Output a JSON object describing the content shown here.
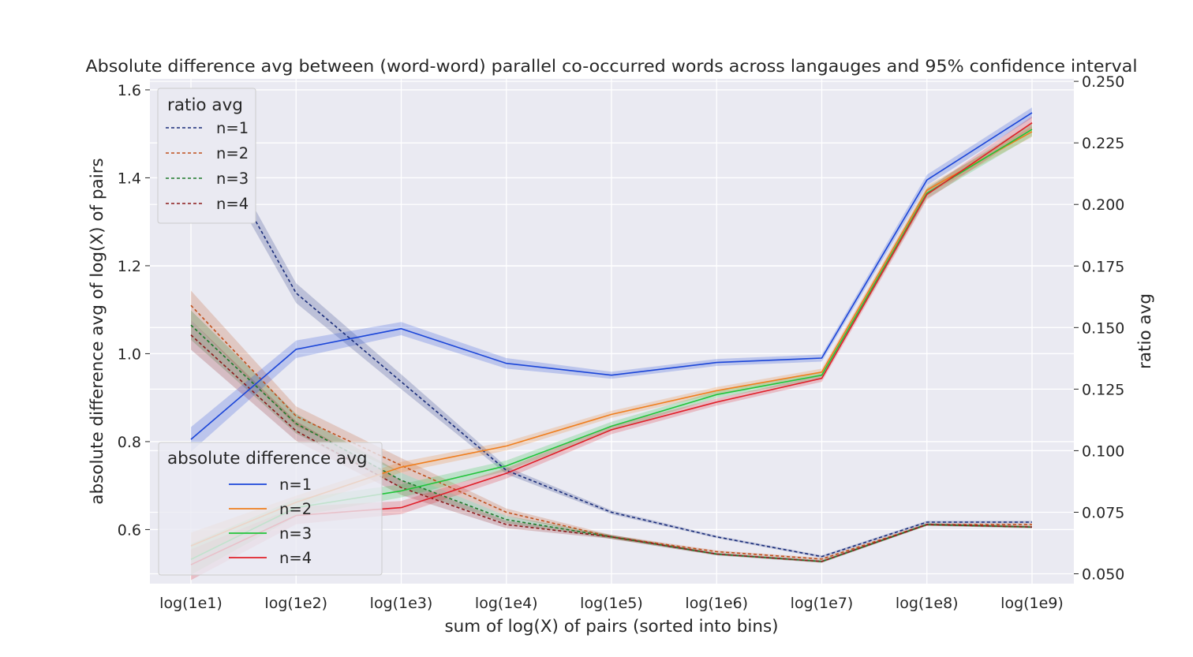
{
  "chart_data": {
    "type": "line",
    "title": "Absolute difference avg between (word-word) parallel co-occurred words across langauges and 95% confidence interval",
    "xlabel": "sum of log(X) of pairs (sorted into bins)",
    "ylabel_left": "absolute difference avg of log(X) of pairs",
    "ylabel_right": "ratio avg",
    "categories": [
      "log(1e1)",
      "log(1e2)",
      "log(1e3)",
      "log(1e4)",
      "log(1e5)",
      "log(1e6)",
      "log(1e7)",
      "log(1e8)",
      "log(1e9)"
    ],
    "ylim_left": [
      0.477,
      1.625
    ],
    "ylim_right": [
      0.046,
      0.251
    ],
    "yticks_left": [
      "0.6",
      "0.8",
      "1.0",
      "1.2",
      "1.4",
      "1.6"
    ],
    "yticks_left_values": [
      0.6,
      0.8,
      1.0,
      1.2,
      1.4,
      1.6
    ],
    "yticks_right": [
      "0.050",
      "0.075",
      "0.100",
      "0.125",
      "0.150",
      "0.175",
      "0.200",
      "0.225",
      "0.250"
    ],
    "yticks_right_values": [
      0.05,
      0.075,
      0.1,
      0.125,
      0.15,
      0.175,
      0.2,
      0.225,
      0.25
    ],
    "grid": true,
    "legends": [
      {
        "title": "ratio avg",
        "placement": "top-left",
        "style": "dashed",
        "entries": [
          "n=1",
          "n=2",
          "n=3",
          "n=4"
        ]
      },
      {
        "title": "absolute difference avg",
        "placement": "bottom-left",
        "style": "solid",
        "entries": [
          "n=1",
          "n=2",
          "n=3",
          "n=4"
        ]
      }
    ],
    "series_absolute_difference": [
      {
        "name": "n=1",
        "color": "#1a45d8",
        "axis": "left",
        "values": [
          0.805,
          1.01,
          1.057,
          0.978,
          0.951,
          0.98,
          0.99,
          1.395,
          1.548
        ],
        "ci": [
          0.028,
          0.02,
          0.015,
          0.012,
          0.008,
          0.008,
          0.008,
          0.012,
          0.012
        ]
      },
      {
        "name": "n=2",
        "color": "#ef7e1e",
        "axis": "left",
        "values": [
          0.563,
          0.662,
          0.742,
          0.79,
          0.862,
          0.916,
          0.958,
          1.372,
          1.505
        ],
        "ci": [
          0.03,
          0.015,
          0.012,
          0.01,
          0.008,
          0.008,
          0.008,
          0.01,
          0.012
        ]
      },
      {
        "name": "n=3",
        "color": "#21c43a",
        "axis": "left",
        "values": [
          0.532,
          0.65,
          0.688,
          0.745,
          0.835,
          0.907,
          0.951,
          1.365,
          1.51
        ],
        "ci": [
          0.035,
          0.02,
          0.015,
          0.012,
          0.01,
          0.008,
          0.008,
          0.012,
          0.015
        ]
      },
      {
        "name": "n=4",
        "color": "#e0202a",
        "axis": "left",
        "values": [
          0.52,
          0.632,
          0.65,
          0.728,
          0.827,
          0.89,
          0.944,
          1.362,
          1.525
        ],
        "ci": [
          0.035,
          0.02,
          0.015,
          0.012,
          0.01,
          0.008,
          0.008,
          0.012,
          0.015
        ]
      }
    ],
    "series_ratio": [
      {
        "name": "n=1",
        "color": "#1a2d7a",
        "axis": "right",
        "values": [
          0.24,
          0.164,
          0.128,
          0.092,
          0.075,
          0.065,
          0.057,
          0.071,
          0.071
        ],
        "ci": [
          0.005,
          0.004,
          0.003,
          0.0015,
          0.0008,
          0.0005,
          0.0005,
          0.0005,
          0.0005
        ]
      },
      {
        "name": "n=2",
        "color": "#c0501c",
        "axis": "right",
        "values": [
          0.159,
          0.114,
          0.094,
          0.075,
          0.065,
          0.059,
          0.056,
          0.07,
          0.07
        ],
        "ci": [
          0.006,
          0.004,
          0.003,
          0.0015,
          0.0008,
          0.0005,
          0.0005,
          0.0005,
          0.0005
        ]
      },
      {
        "name": "n=3",
        "color": "#1d7a2a",
        "axis": "right",
        "values": [
          0.151,
          0.111,
          0.088,
          0.072,
          0.065,
          0.058,
          0.055,
          0.07,
          0.069
        ],
        "ci": [
          0.006,
          0.004,
          0.003,
          0.0015,
          0.0008,
          0.0005,
          0.0005,
          0.0005,
          0.0005
        ]
      },
      {
        "name": "n=4",
        "color": "#8b1a1a",
        "axis": "right",
        "values": [
          0.147,
          0.108,
          0.085,
          0.07,
          0.065,
          0.058,
          0.055,
          0.07,
          0.069
        ],
        "ci": [
          0.006,
          0.004,
          0.003,
          0.0015,
          0.0008,
          0.0005,
          0.0005,
          0.0005,
          0.0005
        ]
      }
    ]
  }
}
